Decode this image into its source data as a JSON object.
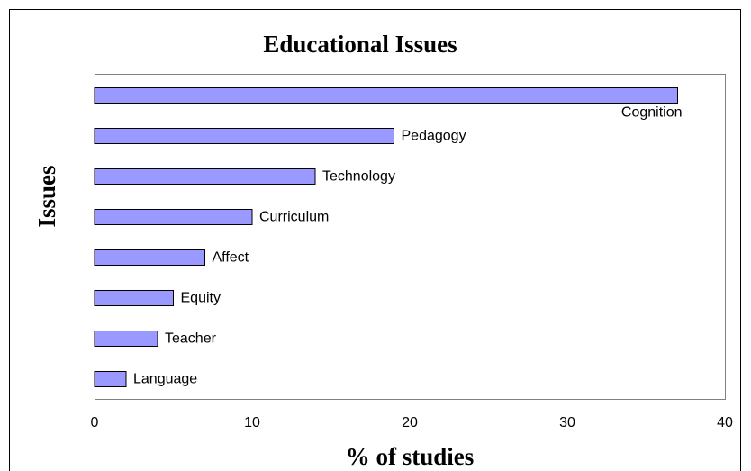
{
  "chart_data": {
    "type": "barh",
    "title": "Educational Issues",
    "x_label": "% of studies",
    "y_label": "Issues",
    "categories": [
      "Cognition",
      "Pedagogy",
      "Technology",
      "Curriculum",
      "Affect",
      "Equity",
      "Teacher",
      "Language"
    ],
    "values": [
      37,
      19,
      14,
      10,
      7,
      5,
      4,
      2
    ],
    "color": "#9999ff",
    "xlim": [
      0,
      40
    ],
    "xticks": [
      0,
      10,
      20,
      30,
      40
    ],
    "grid": false
  }
}
